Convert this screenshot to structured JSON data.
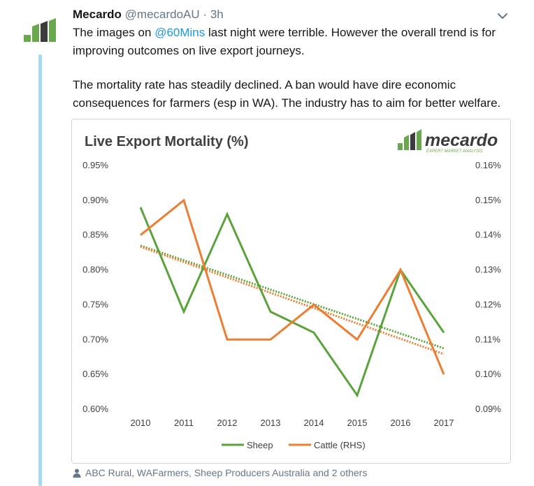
{
  "tweet": {
    "author_name": "Mecardo",
    "handle": "@mecardoAU",
    "separator": "·",
    "time": "3h",
    "text_line1_before": "The images on ",
    "text_mention": "@60Mins",
    "text_line1_after": " last night were terrible. However the overall trend is for",
    "text_line2": "improving outcomes on live export journeys.",
    "text_line3": "The mortality rate has steadily declined. A ban would have dire economic",
    "text_line4": "consequences for farmers (esp in WA). The industry has to aim for better welfare.",
    "likers": "ABC Rural, WAFarmers, Sheep Producers Australia and 2 others"
  },
  "logo": {
    "wordmark": "mecardo",
    "tagline": "EXPERT MARKET ANALYSIS"
  },
  "colors": {
    "sheep": "#5aa33a",
    "cattle": "#ed7d31",
    "link": "#1b95e0",
    "logo_green": "#6aa84f",
    "logo_dark": "#3c3c3c"
  },
  "chart_data": {
    "type": "line",
    "title": "Live Export Mortality (%)",
    "categories": [
      "2010",
      "2011",
      "2012",
      "2013",
      "2014",
      "2015",
      "2016",
      "2017"
    ],
    "ylim_left": [
      0.6,
      0.95
    ],
    "ylim_right": [
      0.09,
      0.16
    ],
    "y_ticks_left": [
      "0.95%",
      "0.90%",
      "0.85%",
      "0.80%",
      "0.75%",
      "0.70%",
      "0.65%",
      "0.60%"
    ],
    "y_ticks_right": [
      "0.16%",
      "0.15%",
      "0.14%",
      "0.13%",
      "0.12%",
      "0.11%",
      "0.10%",
      "0.09%"
    ],
    "grid": false,
    "legend_position": "bottom",
    "series": [
      {
        "name": "Sheep",
        "axis": "left",
        "values": [
          0.89,
          0.74,
          0.88,
          0.74,
          0.71,
          0.62,
          0.8,
          0.71
        ],
        "trendline": true
      },
      {
        "name": "Cattle (RHS)",
        "axis": "right",
        "values": [
          0.14,
          0.15,
          0.11,
          0.11,
          0.12,
          0.11,
          0.13,
          0.1
        ],
        "trendline": true
      }
    ]
  }
}
